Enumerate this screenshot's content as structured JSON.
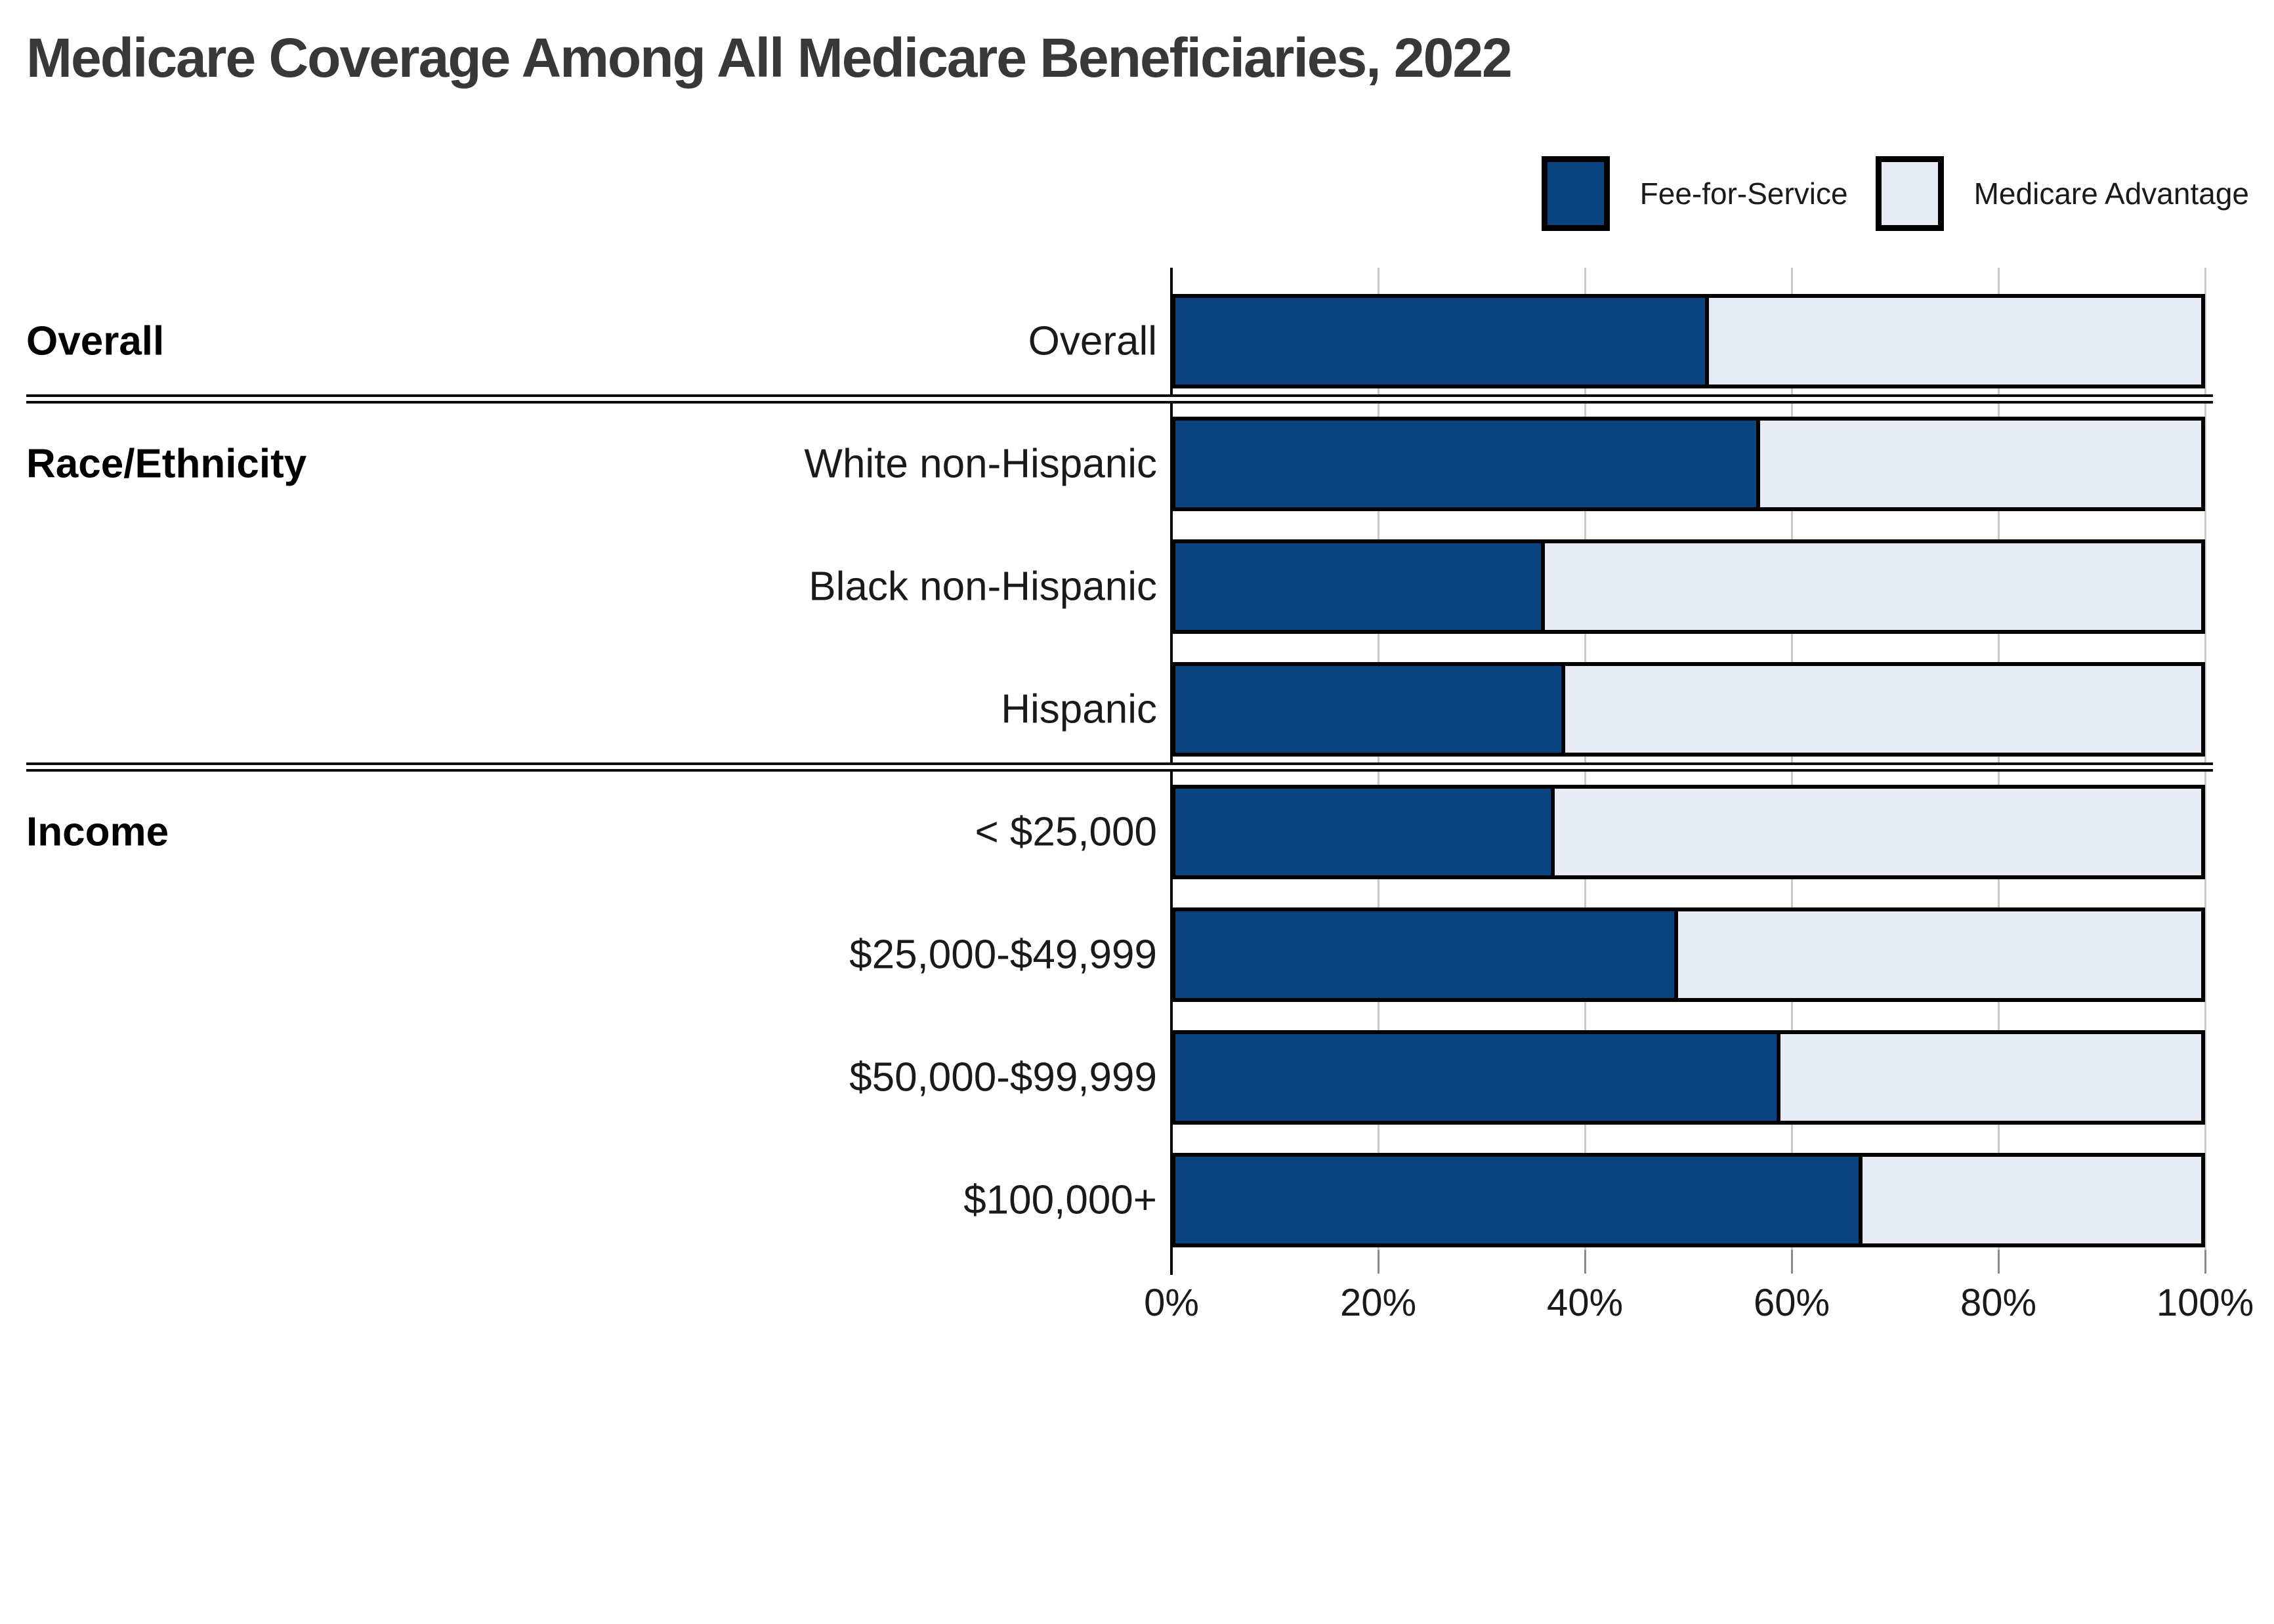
{
  "title": "Medicare Coverage Among All Medicare Beneficiaries, 2022",
  "colors": {
    "fee_for_service": "#0a4480",
    "medicare_advantage": "#e7ebf3",
    "bar_border": "#000000",
    "gridline": "#c9c9c9",
    "title_text": "#383838"
  },
  "chart_data": {
    "type": "bar",
    "orientation": "horizontal-stacked",
    "title": "Medicare Coverage Among All Medicare Beneficiaries, 2022",
    "groups": [
      {
        "label": "Overall",
        "rows": [
          "Overall"
        ]
      },
      {
        "label": "Race/Ethnicity",
        "rows": [
          "White non-Hispanic",
          "Black non-Hispanic",
          "Hispanic"
        ]
      },
      {
        "label": "Income",
        "rows": [
          "< $25,000",
          "$25,000-$49,999",
          "$50,000-$99,999",
          "$100,000+"
        ]
      }
    ],
    "categories": [
      "Overall",
      "White non-Hispanic",
      "Black non-Hispanic",
      "Hispanic",
      "< $25,000",
      "$25,000-$49,999",
      "$50,000-$99,999",
      "$100,000+"
    ],
    "series": [
      {
        "name": "Fee-for-Service",
        "color": "#0a4480",
        "values": [
          52,
          57,
          36,
          38,
          37,
          49,
          59,
          67
        ]
      },
      {
        "name": "Medicare Advantage",
        "color": "#e7ebf3",
        "values": [
          48,
          43,
          64,
          62,
          63,
          51,
          41,
          33
        ]
      }
    ],
    "xlabel": "",
    "ylabel": "",
    "x_ticks": [
      "0%",
      "20%",
      "40%",
      "60%",
      "80%",
      "100%"
    ],
    "x_tick_values": [
      0,
      20,
      40,
      60,
      80,
      100
    ],
    "xlim": [
      0,
      100
    ],
    "grid": true,
    "legend_position": "top-right"
  }
}
